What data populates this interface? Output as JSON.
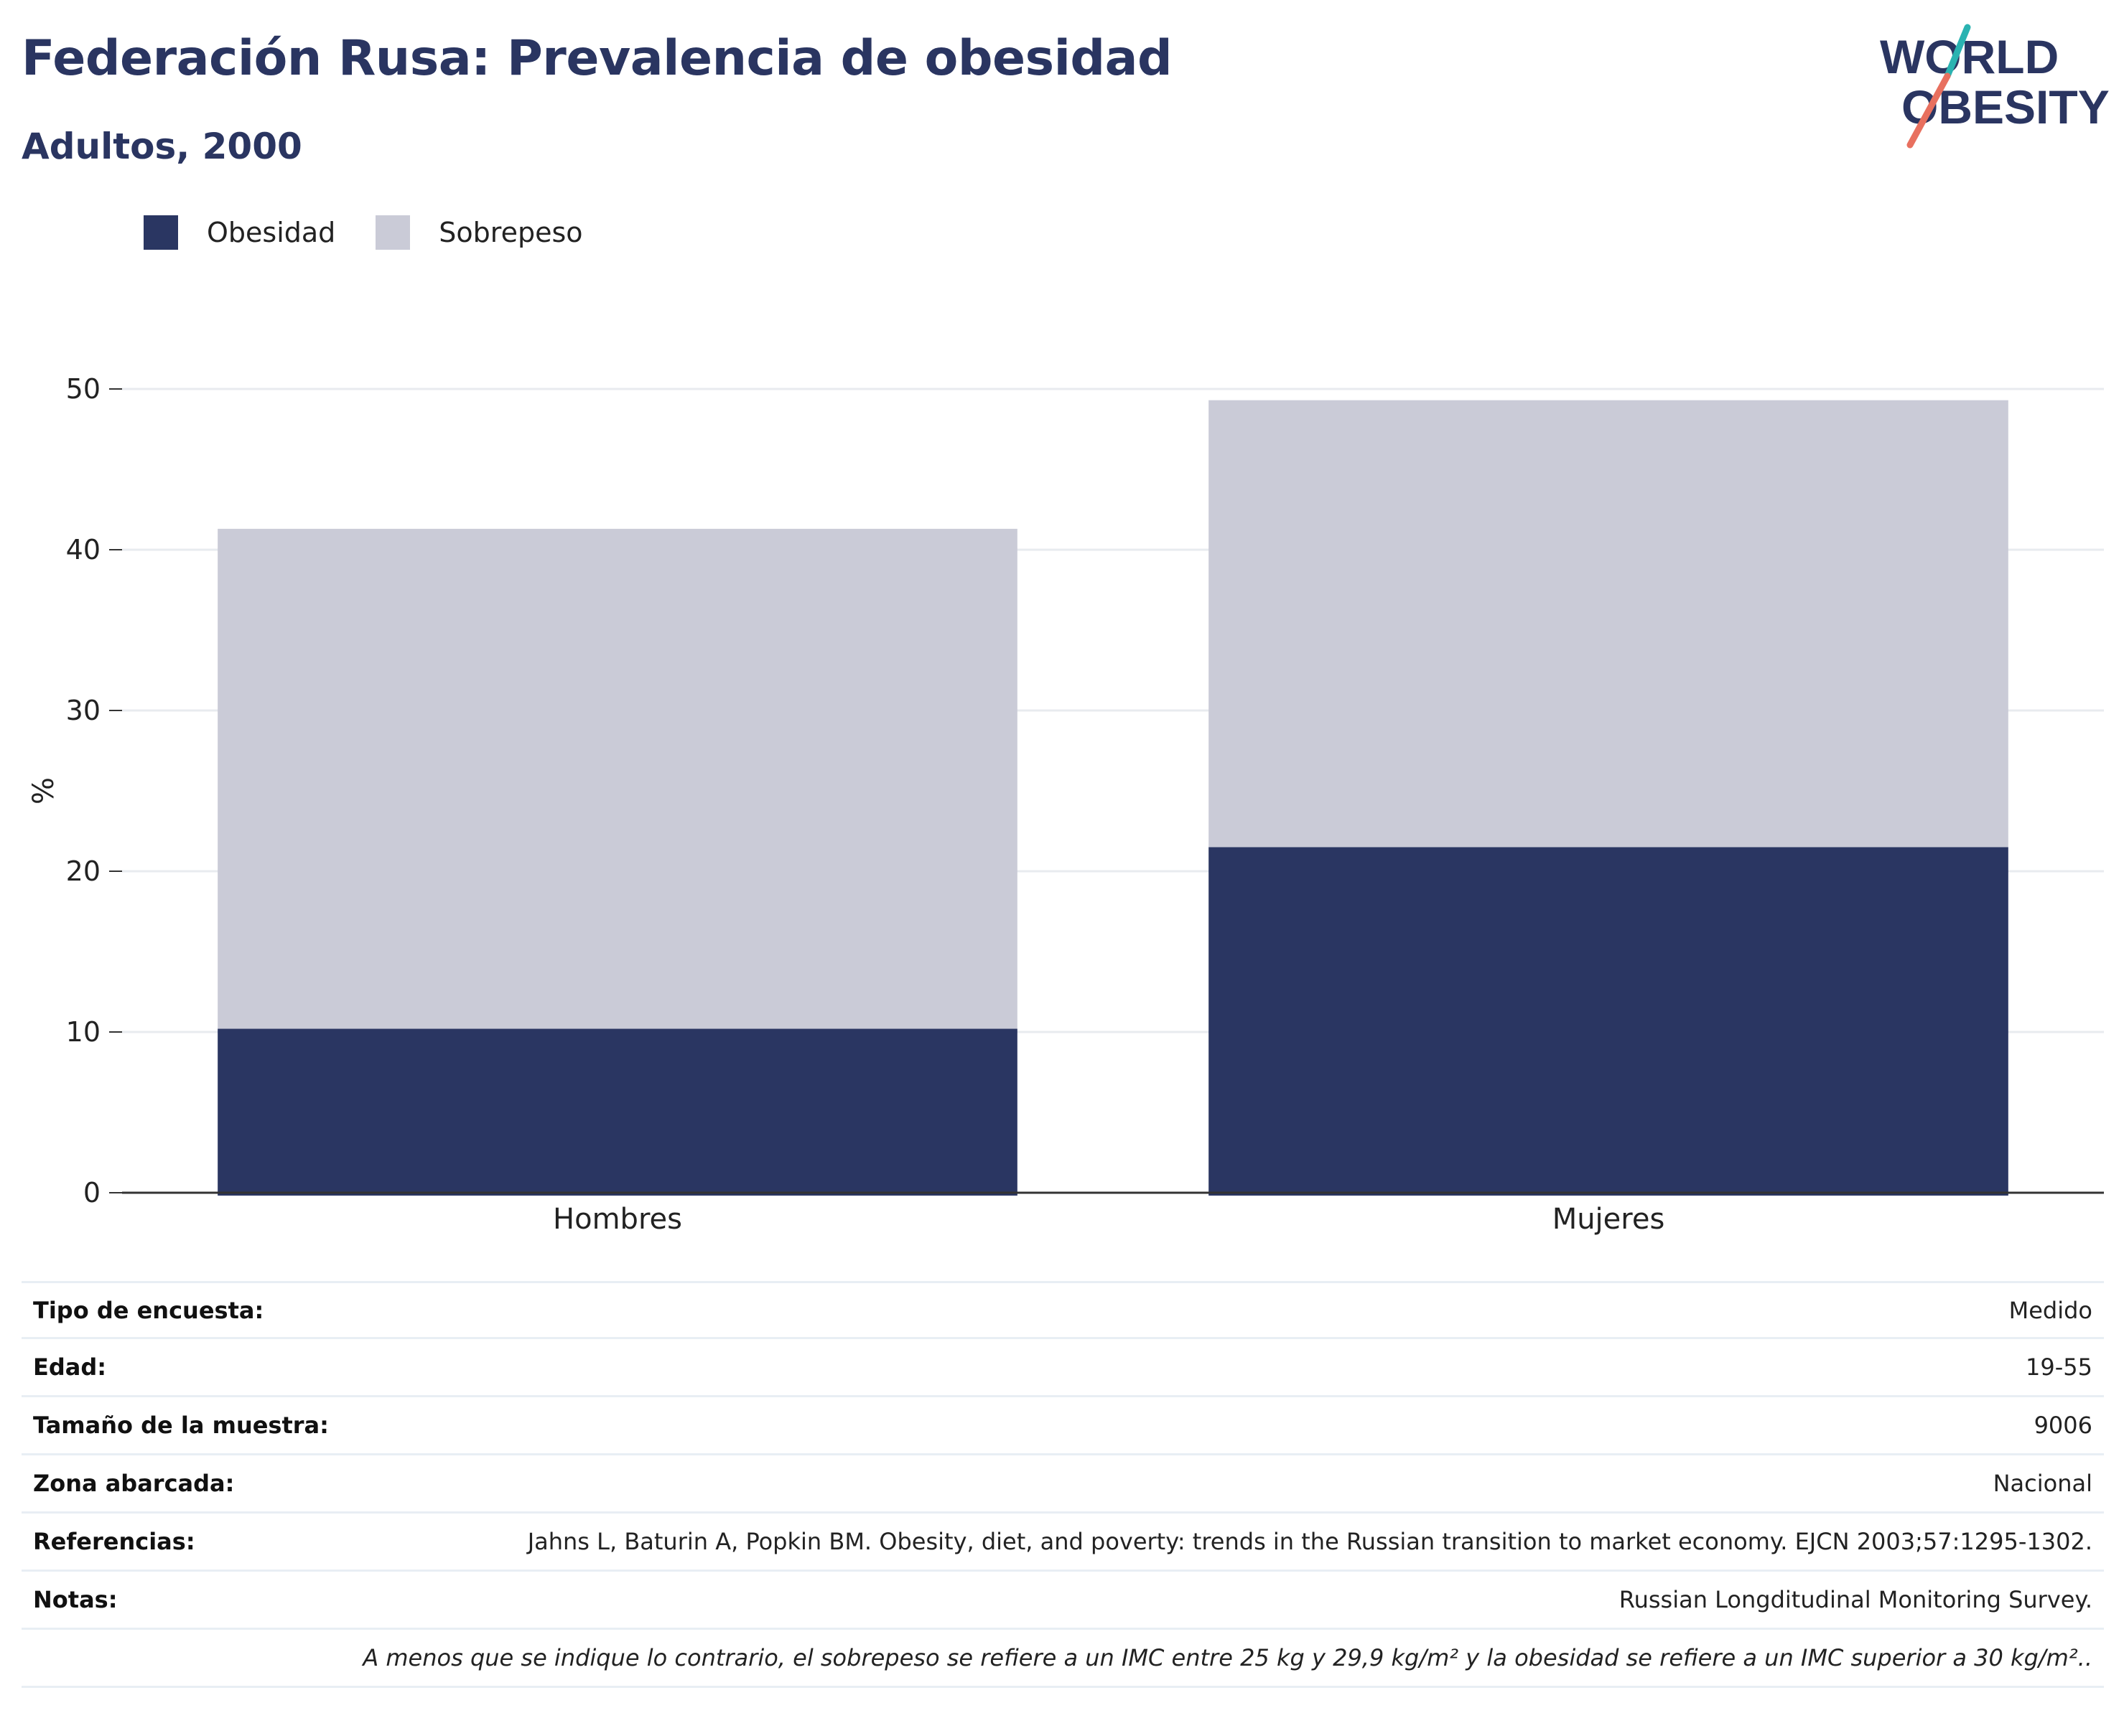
{
  "header": {
    "title": "Federación Rusa: Prevalencia de obesidad",
    "subtitle": "Adultos, 2000"
  },
  "logo": {
    "line1": "WORLD",
    "line2": "OBESITY",
    "icon": "world-obesity-logo"
  },
  "colors": {
    "obesidad": "#2a3662",
    "sobrepeso": "#cacbd7",
    "title": "#2a3561",
    "grid": "#e8ebef",
    "axis": "#333333"
  },
  "legend": [
    {
      "label": "Obesidad"
    },
    {
      "label": "Sobrepeso"
    }
  ],
  "chart_data": {
    "type": "bar",
    "stacked": true,
    "categories": [
      "Hombres",
      "Mujeres"
    ],
    "series": [
      {
        "name": "Obesidad",
        "values": [
          10.2,
          21.5
        ]
      },
      {
        "name": "Sobrepeso",
        "values": [
          31.1,
          27.8
        ]
      }
    ],
    "ylabel": "%",
    "ylim": [
      0,
      50
    ],
    "yticks": [
      0,
      10,
      20,
      30,
      40,
      50
    ],
    "grid": true,
    "legend_position": "top-left"
  },
  "meta": {
    "rows": [
      {
        "key": "Tipo de encuesta:",
        "value": "Medido"
      },
      {
        "key": "Edad:",
        "value": "19-55"
      },
      {
        "key": "Tamaño de la muestra:",
        "value": "9006"
      },
      {
        "key": "Zona abarcada:",
        "value": "Nacional"
      },
      {
        "key": "Referencias:",
        "value": "Jahns L, Baturin A, Popkin BM. Obesity, diet, and poverty: trends in the Russian transition to market economy. EJCN 2003;57:1295-1302."
      },
      {
        "key": "Notas:",
        "value": "Russian Longditudinal Monitoring Survey."
      }
    ],
    "footnote": "A menos que se indique lo contrario, el sobrepeso se refiere a un IMC entre 25 kg y 29,9 kg/m² y la obesidad se refiere a un IMC superior a 30 kg/m².."
  }
}
